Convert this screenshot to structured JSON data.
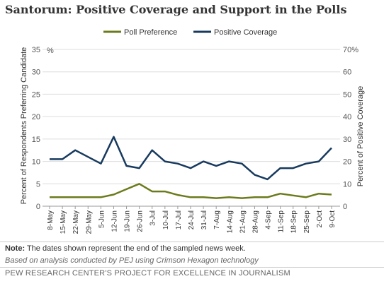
{
  "title": "Santorum: Positive Coverage and Support in the Polls",
  "note_label": "Note:",
  "note_text": " The dates shown represent the end of the sampled news week.",
  "source": "Based on analysis conducted by PEJ using Crimson Hexagon technology",
  "credit": "PEW RESEARCH CENTER'S PROJECT FOR EXCELLENCE IN JOURNALISM",
  "chart_data": {
    "type": "line",
    "categories": [
      "8-May",
      "15-May",
      "22-May",
      "29-May",
      "5-Jun",
      "12-Jun",
      "19-Jun",
      "26-Jun",
      "3-Jul",
      "10-Jul",
      "17-Jul",
      "24-Jul",
      "31-Jul",
      "7-Aug",
      "14-Aug",
      "21-Aug",
      "28-Aug",
      "4-Sep",
      "11-Sep",
      "18-Sep",
      "25-Sep",
      "2-Oct",
      "9-Oct"
    ],
    "series": [
      {
        "name": "Poll Preference",
        "axis": "left",
        "color": "#6b7b1b",
        "values": [
          2,
          2,
          2,
          2,
          2,
          2.6,
          3.8,
          5,
          3.3,
          3.3,
          2.5,
          2,
          2,
          1.8,
          2,
          1.8,
          2,
          2,
          2.8,
          2.4,
          2,
          2.8,
          2.6
        ]
      },
      {
        "name": "Positive Coverage",
        "axis": "right",
        "color": "#173a5e",
        "values": [
          21,
          21,
          25,
          22,
          19,
          31,
          18,
          17,
          25,
          20,
          19,
          17,
          20,
          18,
          20,
          19,
          14,
          12,
          17,
          17,
          19,
          20,
          26
        ]
      }
    ],
    "left_axis": {
      "label": "Percent of Respondents Preferring Candidate",
      "ylim": [
        0,
        35
      ],
      "ticks": [
        "0",
        "5",
        "10",
        "15",
        "20",
        "25",
        "30",
        "35"
      ],
      "unit": "%"
    },
    "right_axis": {
      "label": "Percent of Positive Coverage",
      "ylim": [
        0,
        70
      ],
      "ticks": [
        "0",
        "10",
        "20",
        "30",
        "40",
        "50",
        "60",
        "70%"
      ]
    },
    "legend_position": "top",
    "grid": true
  }
}
